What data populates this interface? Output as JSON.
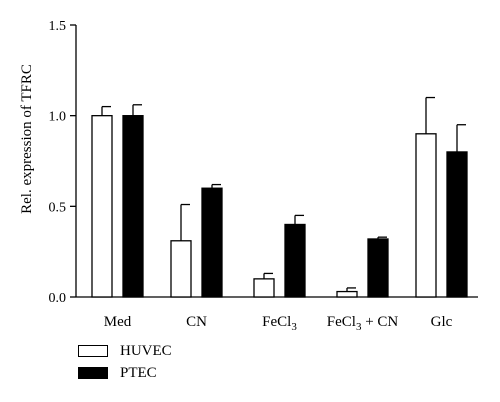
{
  "chart_data": {
    "type": "bar",
    "ylabel": "Rel. expression of TFRC",
    "ylim": [
      0,
      1.5
    ],
    "yticks": [
      0.0,
      0.5,
      1.0,
      1.5
    ],
    "ytick_labels": [
      "0.0",
      "0.5",
      "1.0",
      "1.5"
    ],
    "categories": [
      {
        "base": "Med",
        "sub": "",
        "tail": ""
      },
      {
        "base": "CN",
        "sub": "",
        "tail": ""
      },
      {
        "base": "FeCl",
        "sub": "3",
        "tail": ""
      },
      {
        "base": "FeCl",
        "sub": "3",
        "tail": " + CN"
      },
      {
        "base": "Glc",
        "sub": "",
        "tail": ""
      }
    ],
    "series": [
      {
        "name": "HUVEC",
        "color": "#ffffff",
        "values": [
          1.0,
          0.31,
          0.1,
          0.03,
          0.9
        ],
        "errors": [
          0.05,
          0.2,
          0.03,
          0.02,
          0.2
        ]
      },
      {
        "name": "PTEC",
        "color": "#000000",
        "values": [
          1.0,
          0.6,
          0.4,
          0.32,
          0.8
        ],
        "errors": [
          0.06,
          0.02,
          0.05,
          0.01,
          0.15
        ]
      }
    ],
    "legend_position": "bottom-left",
    "grid": false
  }
}
